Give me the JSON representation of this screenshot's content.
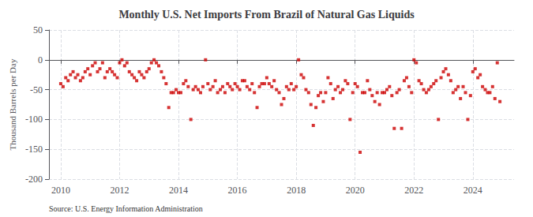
{
  "chart_data": {
    "type": "scatter",
    "title": "Monthly U.S. Net Imports From Brazil of Natural Gas Liquids",
    "ylabel": "Thousand Barrels per Day",
    "annotation": "Source: U.S. Energy Information Administration",
    "color": "#cc0000",
    "marker": "square",
    "grid": true,
    "xlim": [
      2009.6,
      2025.4
    ],
    "xticks": [
      2010,
      2012,
      2014,
      2016,
      2018,
      2020,
      2022,
      2024
    ],
    "ylim": [
      -200,
      50
    ],
    "yticks": [
      -200,
      -150,
      -100,
      -50,
      0,
      50
    ],
    "x": [
      2010.0,
      2010.08,
      2010.17,
      2010.25,
      2010.33,
      2010.42,
      2010.5,
      2010.58,
      2010.67,
      2010.75,
      2010.83,
      2010.92,
      2011.0,
      2011.08,
      2011.17,
      2011.25,
      2011.33,
      2011.42,
      2011.5,
      2011.58,
      2011.67,
      2011.75,
      2011.83,
      2011.92,
      2012.0,
      2012.08,
      2012.17,
      2012.25,
      2012.33,
      2012.42,
      2012.5,
      2012.58,
      2012.67,
      2012.75,
      2012.83,
      2012.92,
      2013.0,
      2013.08,
      2013.17,
      2013.25,
      2013.33,
      2013.42,
      2013.5,
      2013.58,
      2013.67,
      2013.75,
      2013.83,
      2013.92,
      2014.0,
      2014.08,
      2014.17,
      2014.25,
      2014.33,
      2014.42,
      2014.5,
      2014.58,
      2014.67,
      2014.75,
      2014.83,
      2014.92,
      2015.0,
      2015.08,
      2015.17,
      2015.25,
      2015.33,
      2015.42,
      2015.5,
      2015.58,
      2015.67,
      2015.75,
      2015.83,
      2015.92,
      2016.0,
      2016.08,
      2016.17,
      2016.25,
      2016.33,
      2016.42,
      2016.5,
      2016.58,
      2016.67,
      2016.75,
      2016.83,
      2016.92,
      2017.0,
      2017.08,
      2017.17,
      2017.25,
      2017.33,
      2017.42,
      2017.5,
      2017.58,
      2017.67,
      2017.75,
      2017.83,
      2017.92,
      2018.0,
      2018.08,
      2018.17,
      2018.25,
      2018.33,
      2018.42,
      2018.5,
      2018.58,
      2018.67,
      2018.75,
      2018.83,
      2018.92,
      2019.0,
      2019.08,
      2019.17,
      2019.25,
      2019.33,
      2019.42,
      2019.5,
      2019.58,
      2019.67,
      2019.75,
      2019.83,
      2019.92,
      2020.0,
      2020.08,
      2020.17,
      2020.25,
      2020.33,
      2020.42,
      2020.5,
      2020.58,
      2020.67,
      2020.75,
      2020.83,
      2020.92,
      2021.0,
      2021.08,
      2021.17,
      2021.25,
      2021.33,
      2021.42,
      2021.5,
      2021.58,
      2021.67,
      2021.75,
      2021.83,
      2021.92,
      2022.0,
      2022.08,
      2022.17,
      2022.25,
      2022.33,
      2022.42,
      2022.5,
      2022.58,
      2022.67,
      2022.75,
      2022.83,
      2022.92,
      2023.0,
      2023.08,
      2023.17,
      2023.25,
      2023.33,
      2023.42,
      2023.5,
      2023.58,
      2023.67,
      2023.75,
      2023.83,
      2023.92,
      2024.0,
      2024.08,
      2024.17,
      2024.25,
      2024.33,
      2024.42,
      2024.5,
      2024.58,
      2024.67,
      2024.75,
      2024.83,
      2024.92
    ],
    "values": [
      -40,
      -45,
      -30,
      -35,
      -25,
      -20,
      -30,
      -25,
      -35,
      -30,
      -20,
      -15,
      -25,
      -10,
      -5,
      -20,
      -15,
      -5,
      -30,
      -20,
      -15,
      -20,
      -25,
      -30,
      -5,
      0,
      -10,
      -5,
      -20,
      -25,
      -30,
      -35,
      -20,
      -25,
      -30,
      -20,
      -15,
      -5,
      0,
      -5,
      -10,
      -20,
      -30,
      -40,
      -80,
      -55,
      -55,
      -50,
      -55,
      -55,
      -40,
      -35,
      -45,
      -100,
      -50,
      -45,
      -50,
      -55,
      -45,
      0,
      -40,
      -50,
      -45,
      -35,
      -55,
      -50,
      -45,
      -55,
      -40,
      -45,
      -50,
      -40,
      -45,
      -50,
      -35,
      -35,
      -45,
      -50,
      -40,
      -55,
      -80,
      -45,
      -40,
      -40,
      -30,
      -40,
      -45,
      -35,
      -50,
      -55,
      -75,
      -65,
      -45,
      -50,
      -40,
      -50,
      -45,
      0,
      -25,
      -30,
      -50,
      -55,
      -75,
      -110,
      -80,
      -60,
      -55,
      -70,
      -55,
      -30,
      -40,
      -65,
      -50,
      -45,
      -55,
      -50,
      -35,
      -40,
      -100,
      -55,
      -40,
      -45,
      -155,
      -55,
      -55,
      -35,
      -50,
      -60,
      -70,
      -55,
      -75,
      -55,
      -55,
      -50,
      -45,
      -60,
      -115,
      -55,
      -50,
      -115,
      -35,
      -30,
      -45,
      -55,
      0,
      -5,
      -35,
      -40,
      -50,
      -55,
      -50,
      -45,
      -40,
      -35,
      -100,
      -30,
      -20,
      -15,
      -25,
      -35,
      -55,
      -50,
      -45,
      -65,
      -45,
      -55,
      -100,
      -60,
      -20,
      -15,
      -30,
      -25,
      -45,
      -50,
      -55,
      -55,
      -45,
      -65,
      -5,
      -70
    ]
  }
}
